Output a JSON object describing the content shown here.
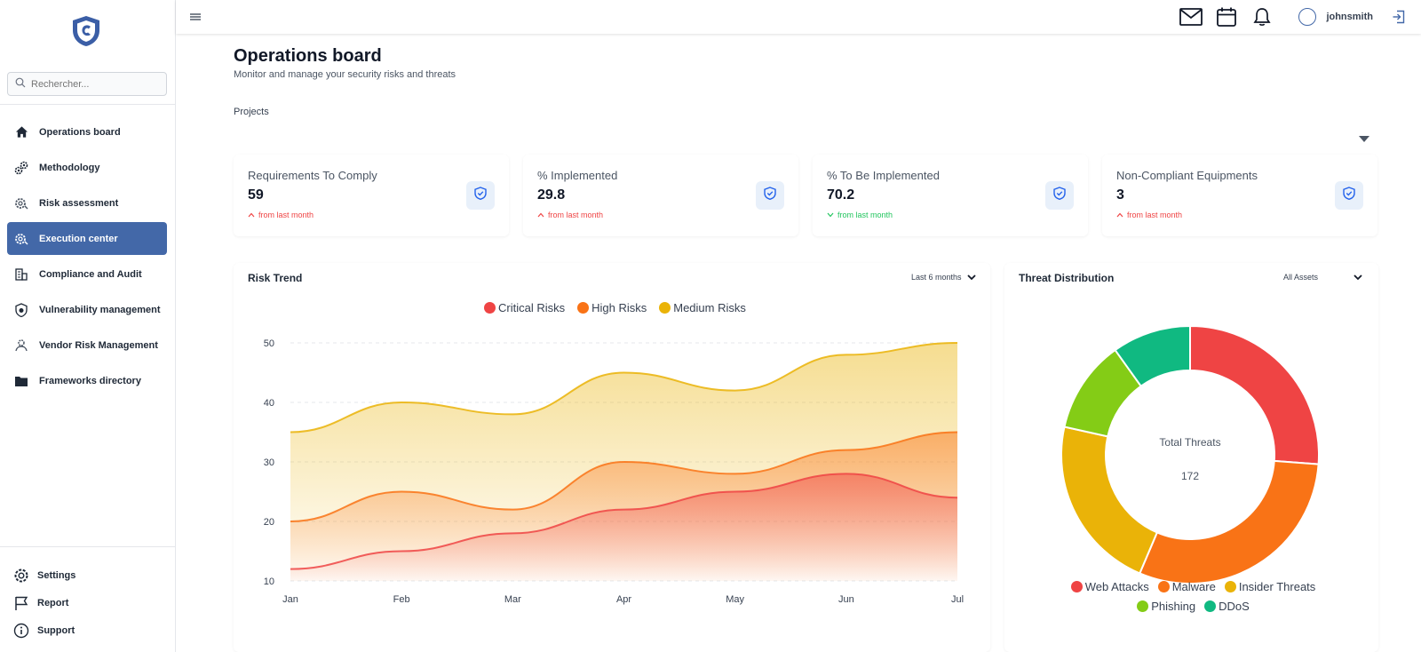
{
  "sidebar": {
    "search_placeholder": "Rechercher...",
    "items": [
      {
        "label": "Operations board",
        "icon": "home-icon",
        "active": false
      },
      {
        "label": "Methodology",
        "icon": "cogs-icon",
        "active": false
      },
      {
        "label": "Risk assessment",
        "icon": "risk-gear-icon",
        "active": false
      },
      {
        "label": "Execution center",
        "icon": "execution-gear-icon",
        "active": true
      },
      {
        "label": "Compliance and Audit",
        "icon": "building-icon",
        "active": false
      },
      {
        "label": "Vulnerability management",
        "icon": "shield-bug-icon",
        "active": false
      },
      {
        "label": "Vendor Risk Management",
        "icon": "vendor-icon",
        "active": false
      },
      {
        "label": "Frameworks directory",
        "icon": "folder-icon",
        "active": false
      }
    ],
    "bottom": [
      {
        "label": "Settings",
        "icon": "gear-icon"
      },
      {
        "label": "Report",
        "icon": "flag-icon"
      },
      {
        "label": "Support",
        "icon": "info-icon"
      }
    ]
  },
  "topbar": {
    "username": "johnsmith"
  },
  "header": {
    "title": "Operations board",
    "subtitle": "Monitor and manage your security risks and threats",
    "projects_label": "Projects"
  },
  "stats": [
    {
      "label": "Requirements To Comply",
      "value": "59",
      "trend": "from last month",
      "direction": "up"
    },
    {
      "label": "% Implemented",
      "value": "29.8",
      "trend": "from last month",
      "direction": "up"
    },
    {
      "label": "% To Be Implemented",
      "value": "70.2",
      "trend": "from last month",
      "direction": "down"
    },
    {
      "label": "Non-Compliant Equipments",
      "value": "3",
      "trend": "from last month",
      "direction": "up"
    }
  ],
  "risk_trend": {
    "title": "Risk Trend",
    "filter": "Last 6 months"
  },
  "threat_distribution": {
    "title": "Threat Distribution",
    "filter": "All Assets",
    "center_label": "Total Threats",
    "center_value": "172"
  },
  "colors": {
    "accent": "#4368a8",
    "critical": "#ef4444",
    "high": "#f97316",
    "medium": "#eab308",
    "phishing": "#84cc16",
    "ddos": "#10b981"
  },
  "chart_data": [
    {
      "type": "area",
      "categories": [
        "Jan",
        "Feb",
        "Mar",
        "Apr",
        "May",
        "Jun",
        "Jul"
      ],
      "ylim": [
        10,
        50
      ],
      "yticks": [
        10,
        20,
        30,
        40,
        50
      ],
      "legend": "top",
      "grid": true,
      "series": [
        {
          "name": "Critical Risks",
          "color": "#ef4444",
          "values": [
            12,
            15,
            18,
            22,
            25,
            28,
            24
          ]
        },
        {
          "name": "High Risks",
          "color": "#f97316",
          "values": [
            20,
            25,
            22,
            30,
            28,
            32,
            35
          ]
        },
        {
          "name": "Medium Risks",
          "color": "#eab308",
          "values": [
            35,
            40,
            38,
            45,
            42,
            48,
            50
          ]
        }
      ]
    },
    {
      "type": "pie",
      "donut": true,
      "legend": "bottom",
      "slices": [
        {
          "name": "Web Attacks",
          "color": "#ef4444",
          "value": 45
        },
        {
          "name": "Malware",
          "color": "#f97316",
          "value": 52
        },
        {
          "name": "Insider Threats",
          "color": "#eab308",
          "value": 38
        },
        {
          "name": "Phishing",
          "color": "#84cc16",
          "value": 20
        },
        {
          "name": "DDoS",
          "color": "#10b981",
          "value": 17
        }
      ]
    }
  ]
}
